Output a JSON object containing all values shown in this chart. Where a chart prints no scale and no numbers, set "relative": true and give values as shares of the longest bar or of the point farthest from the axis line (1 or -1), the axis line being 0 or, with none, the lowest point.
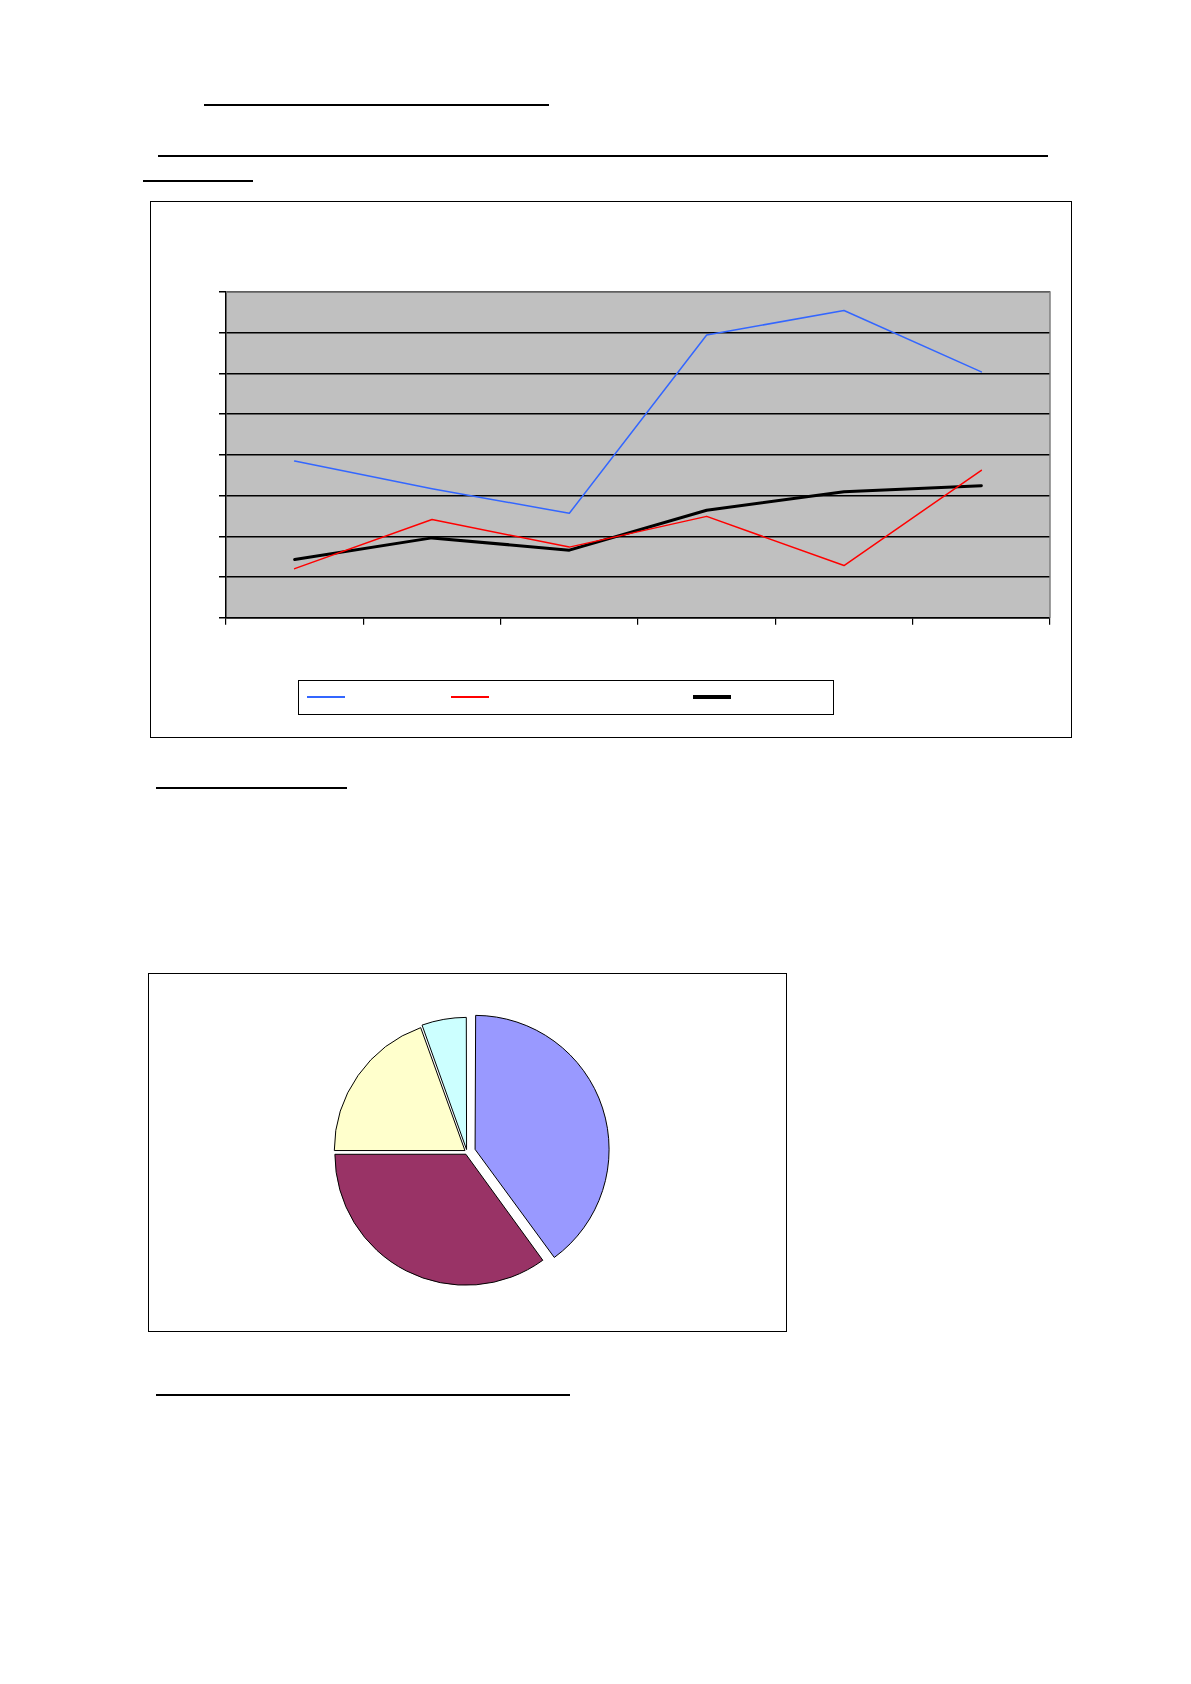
{
  "chart_data": [
    {
      "type": "line",
      "relative": true,
      "categories": [
        null,
        null,
        null,
        null,
        null,
        null
      ],
      "series": [
        {
          "color": "#3366ff",
          "values": [
            0.51,
            0.42,
            0.34,
            0.92,
            1.0,
            0.8
          ]
        },
        {
          "color": "#ff0000",
          "values": [
            0.16,
            0.32,
            0.23,
            0.33,
            0.17,
            0.48
          ]
        },
        {
          "color": "#000000",
          "values": [
            0.19,
            0.26,
            0.22,
            0.35,
            0.41,
            0.43
          ]
        }
      ],
      "grid": "y",
      "marker": "none"
    },
    {
      "type": "pie",
      "categories": [
        null,
        null,
        null,
        null
      ],
      "values": [
        40,
        35,
        19.5,
        5.5
      ],
      "colors": [
        "#9999ff",
        "#993366",
        "#ffffcc",
        "#ccffff"
      ]
    }
  ]
}
